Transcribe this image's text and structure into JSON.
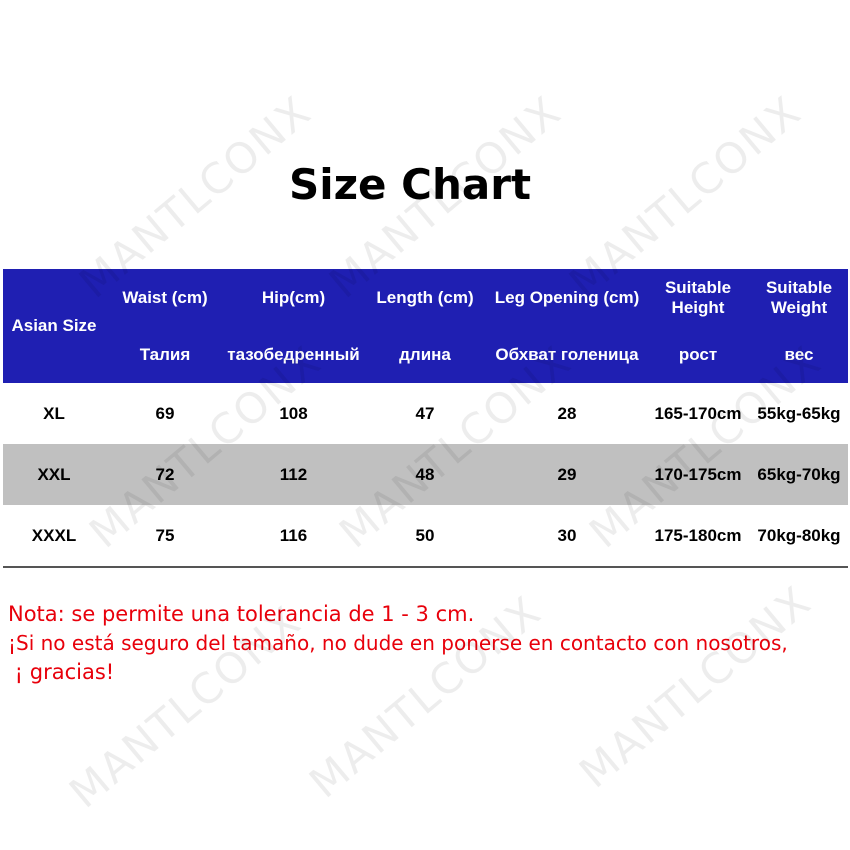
{
  "title": "Size Chart",
  "watermark": "MANTLCONX",
  "colors": {
    "header_bg": "#1f1fb2",
    "alt_row_bg": "#c0c0c0",
    "note_text": "#e8000b"
  },
  "table": {
    "headers": [
      {
        "en": "Asian Size",
        "ru": ""
      },
      {
        "en": "Waist (cm)",
        "ru": "Талия"
      },
      {
        "en": "Hip(cm)",
        "ru": "тазобедренный"
      },
      {
        "en": "Length (cm)",
        "ru": "длина"
      },
      {
        "en": "Leg Opening (cm)",
        "ru": "Обхват голеница"
      },
      {
        "en": "Suitable Height",
        "ru": "рост"
      },
      {
        "en": "Suitable Weight",
        "ru": "вес"
      }
    ],
    "rows": [
      [
        "XL",
        "69",
        "108",
        "47",
        "28",
        "165-170cm",
        "55kg-65kg"
      ],
      [
        "XXL",
        "72",
        "112",
        "48",
        "29",
        "170-175cm",
        "65kg-70kg"
      ],
      [
        "XXXL",
        "75",
        "116",
        "50",
        "30",
        "175-180cm",
        "70kg-80kg"
      ]
    ]
  },
  "notes": [
    "Nota: se permite una tolerancia de 1 - 3 cm.",
    "¡Si no está seguro del tamaño, no dude en ponerse en contacto con nosotros,",
    " ¡ gracias!"
  ]
}
